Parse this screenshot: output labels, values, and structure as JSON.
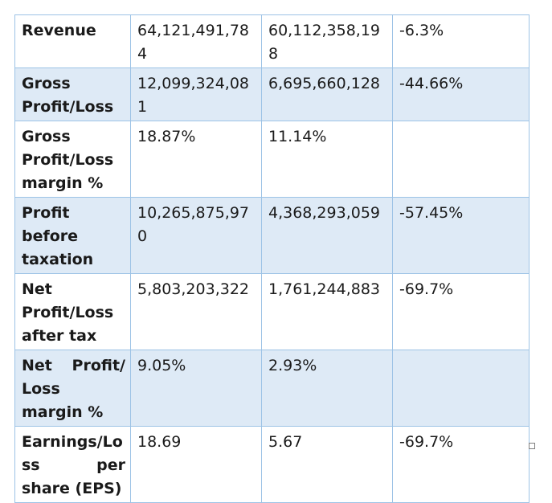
{
  "table": {
    "rows": [
      {
        "shaded": false,
        "label": "Revenue",
        "col1": "64,121,491,784",
        "col2": "60,112,358,198",
        "col3": "-6.3%"
      },
      {
        "shaded": true,
        "label": "Gross Profit/Loss",
        "col1": "12,099,324,081",
        "col2": "6,695,660,128",
        "col3": "-44.66%"
      },
      {
        "shaded": false,
        "label": "Gross Profit/Loss margin %",
        "col1": "18.87%",
        "col2": "11.14%",
        "col3": ""
      },
      {
        "shaded": true,
        "label": "Profit before taxation",
        "col1": "10,265,875,970",
        "col2": "4,368,293,059",
        "col3": "-57.45%"
      },
      {
        "shaded": false,
        "label": "Net Profit/Loss after tax",
        "col1": "5,803,203,322",
        "col2": "1,761,244,883",
        "col3": "-69.7%"
      },
      {
        "shaded": true,
        "label": "Net Profit/ Loss margin %",
        "col1": "9.05%",
        "col2": "2.93%",
        "col3": ""
      },
      {
        "shaded": false,
        "label": "Earnings/Loss per share (EPS)",
        "col1": "18.69",
        "col2": "5.67",
        "col3": "-69.7%"
      }
    ]
  }
}
